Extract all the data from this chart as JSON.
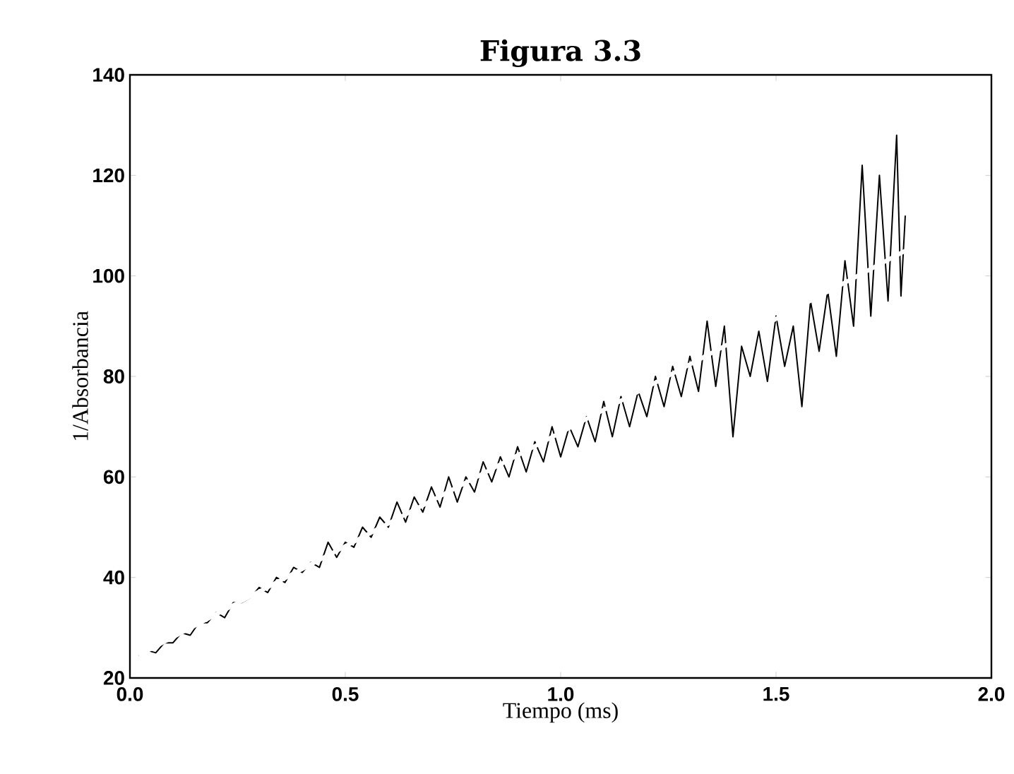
{
  "chart_data": {
    "type": "line",
    "title": "Figura 3.3",
    "xlabel": "Tiempo (ms)",
    "ylabel": "1/Absorbancia",
    "xlim": [
      0,
      2
    ],
    "ylim": [
      20,
      140
    ],
    "xticks": [
      {
        "value": 0,
        "label": "0.0"
      },
      {
        "value": 0.5,
        "label": "0.5"
      },
      {
        "value": 1,
        "label": "1.0"
      },
      {
        "value": 1.5,
        "label": "1.5"
      },
      {
        "value": 2,
        "label": "2.0"
      }
    ],
    "yticks": [
      20,
      40,
      60,
      80,
      100,
      120,
      140
    ],
    "grid": false,
    "marker": "none",
    "line_style": "solid",
    "series": [
      {
        "color": "#000000",
        "x": [
          0.02,
          0.04,
          0.06,
          0.08,
          0.1,
          0.12,
          0.14,
          0.16,
          0.18,
          0.2,
          0.22,
          0.24,
          0.26,
          0.28,
          0.3,
          0.32,
          0.34,
          0.36,
          0.38,
          0.4,
          0.42,
          0.44,
          0.46,
          0.48,
          0.5,
          0.52,
          0.54,
          0.56,
          0.58,
          0.6,
          0.62,
          0.64,
          0.66,
          0.68,
          0.7,
          0.72,
          0.74,
          0.76,
          0.78,
          0.8,
          0.82,
          0.84,
          0.86,
          0.88,
          0.9,
          0.92,
          0.94,
          0.96,
          0.98,
          1.0,
          1.02,
          1.04,
          1.06,
          1.08,
          1.1,
          1.12,
          1.14,
          1.16,
          1.18,
          1.2,
          1.22,
          1.24,
          1.26,
          1.28,
          1.3,
          1.32,
          1.34,
          1.36,
          1.38,
          1.4,
          1.42,
          1.44,
          1.46,
          1.48,
          1.5,
          1.52,
          1.54,
          1.56,
          1.58,
          1.6,
          1.62,
          1.64,
          1.66,
          1.68,
          1.7,
          1.72,
          1.74,
          1.76,
          1.78,
          1.79,
          1.8
        ],
        "values": [
          24.5,
          25.5,
          25,
          27,
          27,
          29,
          28.5,
          31,
          31,
          33,
          32,
          35,
          35,
          36,
          38,
          37,
          40,
          39,
          42,
          41,
          43,
          42,
          47,
          44,
          47,
          46,
          50,
          48,
          52,
          50,
          55,
          51,
          56,
          53,
          58,
          54,
          60,
          55,
          60,
          57,
          63,
          59,
          64,
          60,
          66,
          61,
          67,
          63,
          70,
          64,
          70,
          66,
          72,
          67,
          75,
          68,
          76,
          70,
          77,
          72,
          80,
          74,
          82,
          76,
          84,
          77,
          91,
          78,
          90,
          68,
          86,
          80,
          89,
          79,
          92,
          82,
          90,
          74,
          95,
          85,
          97,
          84,
          103,
          90,
          122,
          92,
          120,
          95,
          128,
          96,
          112
        ]
      },
      {
        "color": "#ffffff",
        "x": [
          0.02,
          1.8
        ],
        "values": [
          24.5,
          105
        ]
      }
    ]
  }
}
